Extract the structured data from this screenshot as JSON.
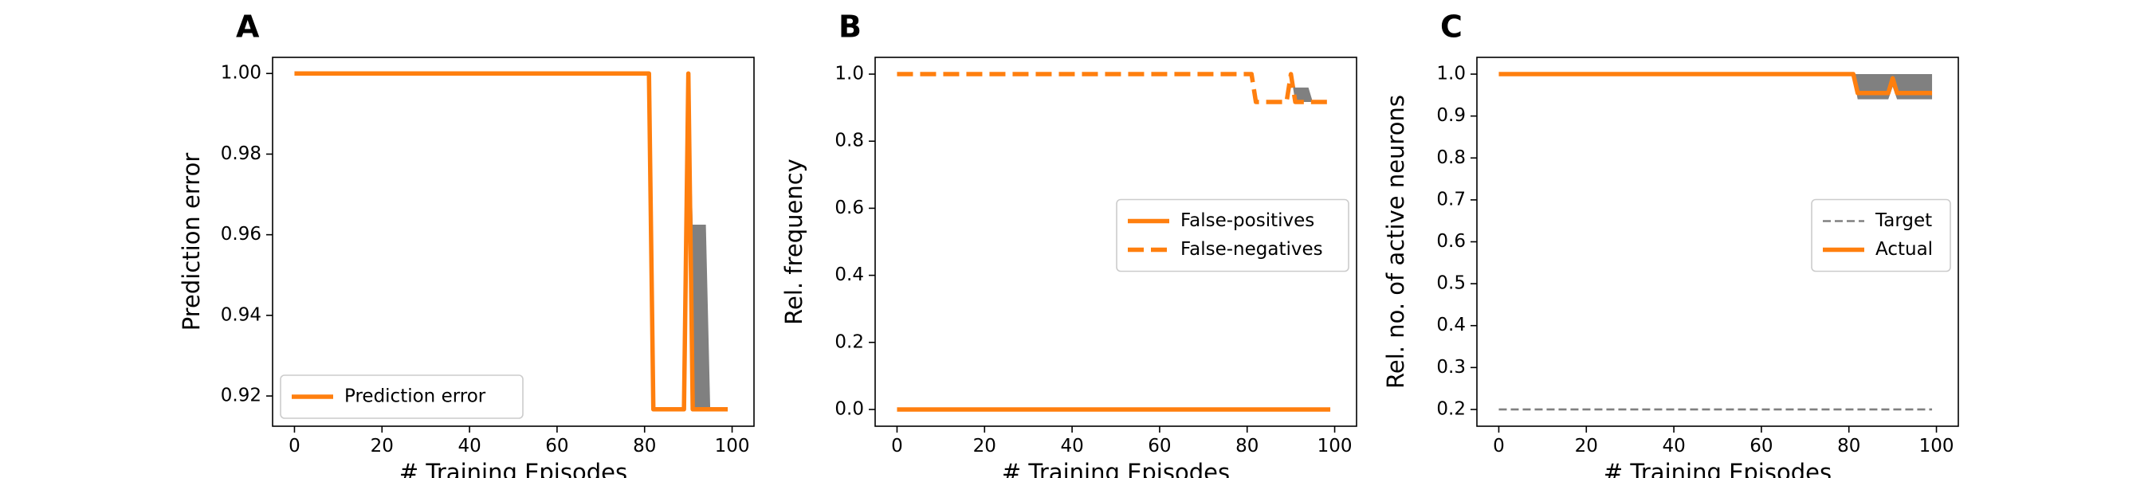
{
  "chart_data": [
    {
      "panel": "A",
      "type": "line",
      "xlabel": "# Training Episodes",
      "ylabel": "Prediction error",
      "xlim": [
        -5,
        105
      ],
      "ylim": [
        0.9125,
        1.004
      ],
      "xticks": [
        0,
        20,
        40,
        60,
        80,
        100
      ],
      "yticks": [
        0.92,
        0.94,
        0.96,
        0.98,
        1.0
      ],
      "ytick_labels": [
        "0.92",
        "0.94",
        "0.96",
        "0.98",
        "1.00"
      ],
      "legend_position": "lower-left",
      "series": [
        {
          "name": "Prediction error",
          "style": "solid",
          "color": "#ff7f0e",
          "x": [
            0,
            81,
            82,
            89,
            90,
            91,
            99
          ],
          "y": [
            1.0,
            1.0,
            0.9167,
            0.9167,
            1.0,
            0.9167,
            0.9167
          ]
        }
      ],
      "band": {
        "color": "#808080",
        "x": [
          90,
          91,
          92,
          94,
          95
        ],
        "lower": [
          1.0,
          0.9167,
          0.9167,
          0.9167,
          0.9167
        ],
        "upper": [
          1.0,
          0.9625,
          0.9625,
          0.9625,
          0.9167
        ]
      }
    },
    {
      "panel": "B",
      "type": "line",
      "xlabel": "# Training Episodes",
      "ylabel": "Rel. frequency",
      "xlim": [
        -5,
        105
      ],
      "ylim": [
        -0.05,
        1.05
      ],
      "xticks": [
        0,
        20,
        40,
        60,
        80,
        100
      ],
      "yticks": [
        0.0,
        0.2,
        0.4,
        0.6,
        0.8,
        1.0
      ],
      "ytick_labels": [
        "0.0",
        "0.2",
        "0.4",
        "0.6",
        "0.8",
        "1.0"
      ],
      "legend_position": "center-right",
      "series": [
        {
          "name": "False-positives",
          "style": "solid",
          "color": "#ff7f0e",
          "x": [
            0,
            99
          ],
          "y": [
            0.0,
            0.0
          ]
        },
        {
          "name": "False-negatives",
          "style": "dashed",
          "color": "#ff7f0e",
          "x": [
            0,
            81,
            82,
            89,
            90,
            91,
            99
          ],
          "y": [
            1.0,
            1.0,
            0.917,
            0.917,
            1.0,
            0.917,
            0.917
          ]
        }
      ],
      "band": {
        "color": "#808080",
        "x": [
          90,
          91,
          94,
          95
        ],
        "lower": [
          1.0,
          0.917,
          0.917,
          0.917
        ],
        "upper": [
          1.0,
          0.96,
          0.96,
          0.917
        ]
      }
    },
    {
      "panel": "C",
      "type": "line",
      "xlabel": "# Training Episodes",
      "ylabel": "Rel. no. of active neurons",
      "xlim": [
        -5,
        105
      ],
      "ylim": [
        0.16,
        1.04
      ],
      "xticks": [
        0,
        20,
        40,
        60,
        80,
        100
      ],
      "yticks": [
        0.2,
        0.3,
        0.4,
        0.5,
        0.6,
        0.7,
        0.8,
        0.9,
        1.0
      ],
      "ytick_labels": [
        "0.2",
        "0.3",
        "0.4",
        "0.5",
        "0.6",
        "0.7",
        "0.8",
        "0.9",
        "1.0"
      ],
      "legend_position": "center-right",
      "series": [
        {
          "name": "Target",
          "style": "dashed-thin",
          "color": "#808080",
          "x": [
            0,
            99
          ],
          "y": [
            0.2,
            0.2
          ]
        },
        {
          "name": "Actual",
          "style": "solid",
          "color": "#ff7f0e",
          "x": [
            0,
            81,
            82,
            89,
            90,
            91,
            99
          ],
          "y": [
            1.0,
            1.0,
            0.955,
            0.955,
            0.99,
            0.955,
            0.955
          ]
        }
      ],
      "band": {
        "color": "#808080",
        "x": [
          81,
          82,
          89,
          90,
          91,
          99
        ],
        "lower": [
          1.0,
          0.94,
          0.94,
          0.97,
          0.94,
          0.94
        ],
        "upper": [
          1.0,
          1.0,
          1.0,
          1.0,
          1.0,
          1.0
        ]
      }
    }
  ]
}
